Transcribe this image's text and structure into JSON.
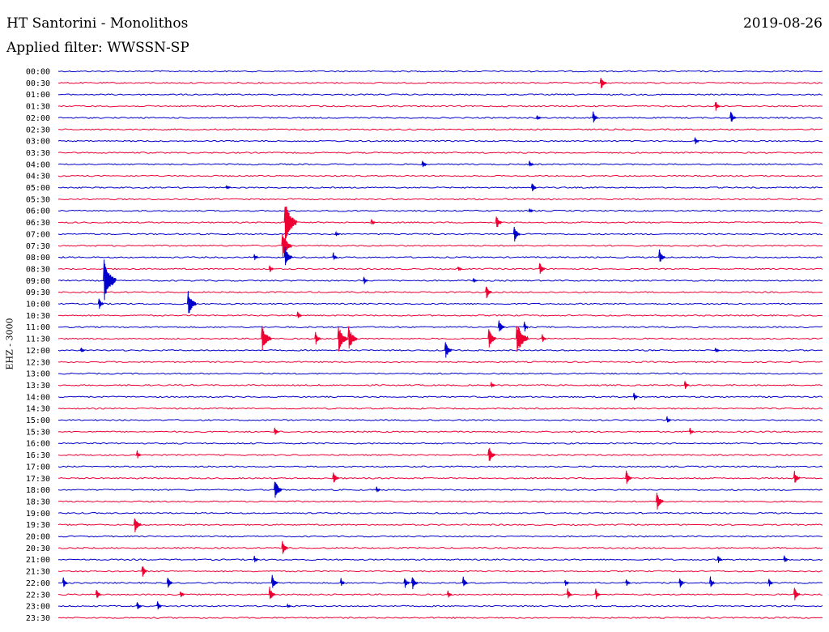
{
  "header": {
    "station": "HT Santorini - Monolithos",
    "filter": "Applied filter: WWSSN-SP",
    "date": "2019-08-26"
  },
  "colors": {
    "blue": "#0000cc",
    "red": "#ee0033"
  },
  "chart_data": {
    "type": "helicorder",
    "title": "HT Santorini - Monolithos",
    "ylabel": "EHZ - 3000",
    "row_labels": [
      "00:00",
      "00:30",
      "01:00",
      "01:30",
      "02:00",
      "02:30",
      "03:00",
      "03:30",
      "04:00",
      "04:30",
      "05:00",
      "05:30",
      "06:00",
      "06:30",
      "07:00",
      "07:30",
      "08:00",
      "08:30",
      "09:00",
      "09:30",
      "10:00",
      "10:30",
      "11:00",
      "11:30",
      "12:00",
      "12:30",
      "13:00",
      "13:30",
      "14:00",
      "14:30",
      "15:00",
      "15:30",
      "16:00",
      "16:30",
      "17:00",
      "17:30",
      "18:00",
      "18:30",
      "19:00",
      "19:30",
      "20:00",
      "20:30",
      "21:00",
      "21:30",
      "22:00",
      "22:30",
      "23:00",
      "23:30"
    ],
    "row_minutes": 30,
    "row_colors": [
      "blue",
      "red"
    ],
    "events": [
      {
        "row": 1,
        "minute": 21.3,
        "amp": 10
      },
      {
        "row": 3,
        "minute": 25.8,
        "amp": 8
      },
      {
        "row": 4,
        "minute": 18.8,
        "amp": 4
      },
      {
        "row": 4,
        "minute": 21.0,
        "amp": 8
      },
      {
        "row": 4,
        "minute": 26.4,
        "amp": 9
      },
      {
        "row": 6,
        "minute": 25.0,
        "amp": 6
      },
      {
        "row": 8,
        "minute": 14.3,
        "amp": 7
      },
      {
        "row": 8,
        "minute": 18.5,
        "amp": 5
      },
      {
        "row": 10,
        "minute": 6.6,
        "amp": 3
      },
      {
        "row": 10,
        "minute": 18.6,
        "amp": 8
      },
      {
        "row": 12,
        "minute": 18.5,
        "amp": 4
      },
      {
        "row": 13,
        "minute": 12.3,
        "amp": 4
      },
      {
        "row": 13,
        "minute": 17.2,
        "amp": 10
      },
      {
        "row": 13,
        "minute": 8.9,
        "amp": 28
      },
      {
        "row": 14,
        "minute": 17.9,
        "amp": 11
      },
      {
        "row": 14,
        "minute": 10.9,
        "amp": 3
      },
      {
        "row": 15,
        "minute": 8.8,
        "amp": 18
      },
      {
        "row": 16,
        "minute": 7.7,
        "amp": 5
      },
      {
        "row": 16,
        "minute": 10.8,
        "amp": 6
      },
      {
        "row": 16,
        "minute": 23.6,
        "amp": 10
      },
      {
        "row": 16,
        "minute": 8.9,
        "amp": 14
      },
      {
        "row": 17,
        "minute": 8.3,
        "amp": 6
      },
      {
        "row": 17,
        "minute": 15.7,
        "amp": 4
      },
      {
        "row": 17,
        "minute": 18.9,
        "amp": 10
      },
      {
        "row": 18,
        "minute": 1.8,
        "amp": 28
      },
      {
        "row": 18,
        "minute": 12.0,
        "amp": 6
      },
      {
        "row": 18,
        "minute": 16.3,
        "amp": 3
      },
      {
        "row": 19,
        "minute": 16.8,
        "amp": 10
      },
      {
        "row": 20,
        "minute": 1.6,
        "amp": 8
      },
      {
        "row": 20,
        "minute": 5.1,
        "amp": 16
      },
      {
        "row": 21,
        "minute": 9.4,
        "amp": 6
      },
      {
        "row": 22,
        "minute": 17.3,
        "amp": 10
      },
      {
        "row": 22,
        "minute": 18.3,
        "amp": 7
      },
      {
        "row": 23,
        "minute": 8.0,
        "amp": 18
      },
      {
        "row": 23,
        "minute": 10.1,
        "amp": 9
      },
      {
        "row": 23,
        "minute": 11.0,
        "amp": 18
      },
      {
        "row": 23,
        "minute": 11.4,
        "amp": 16
      },
      {
        "row": 23,
        "minute": 16.9,
        "amp": 14
      },
      {
        "row": 23,
        "minute": 18.0,
        "amp": 22
      },
      {
        "row": 23,
        "minute": 19.0,
        "amp": 6
      },
      {
        "row": 24,
        "minute": 15.2,
        "amp": 12
      },
      {
        "row": 24,
        "minute": 0.9,
        "amp": 4
      },
      {
        "row": 24,
        "minute": 25.8,
        "amp": 4
      },
      {
        "row": 27,
        "minute": 17.0,
        "amp": 4
      },
      {
        "row": 27,
        "minute": 24.6,
        "amp": 7
      },
      {
        "row": 28,
        "minute": 22.6,
        "amp": 6
      },
      {
        "row": 30,
        "minute": 23.9,
        "amp": 5
      },
      {
        "row": 31,
        "minute": 8.5,
        "amp": 6
      },
      {
        "row": 31,
        "minute": 24.8,
        "amp": 5
      },
      {
        "row": 33,
        "minute": 3.1,
        "amp": 6
      },
      {
        "row": 33,
        "minute": 16.9,
        "amp": 12
      },
      {
        "row": 35,
        "minute": 10.8,
        "amp": 10
      },
      {
        "row": 35,
        "minute": 22.3,
        "amp": 10
      },
      {
        "row": 35,
        "minute": 28.9,
        "amp": 10
      },
      {
        "row": 36,
        "minute": 8.5,
        "amp": 14
      },
      {
        "row": 36,
        "minute": 12.5,
        "amp": 4
      },
      {
        "row": 37,
        "minute": 23.5,
        "amp": 12
      },
      {
        "row": 39,
        "minute": 3.0,
        "amp": 12
      },
      {
        "row": 41,
        "minute": 8.8,
        "amp": 10
      },
      {
        "row": 42,
        "minute": 7.7,
        "amp": 5
      },
      {
        "row": 42,
        "minute": 25.9,
        "amp": 6
      },
      {
        "row": 42,
        "minute": 28.5,
        "amp": 6
      },
      {
        "row": 43,
        "minute": 3.3,
        "amp": 9
      },
      {
        "row": 44,
        "minute": 0.2,
        "amp": 8
      },
      {
        "row": 44,
        "minute": 4.3,
        "amp": 8
      },
      {
        "row": 44,
        "minute": 8.4,
        "amp": 10
      },
      {
        "row": 44,
        "minute": 11.1,
        "amp": 6
      },
      {
        "row": 44,
        "minute": 13.6,
        "amp": 8
      },
      {
        "row": 44,
        "minute": 13.9,
        "amp": 10
      },
      {
        "row": 44,
        "minute": 15.9,
        "amp": 8
      },
      {
        "row": 44,
        "minute": 19.9,
        "amp": 5
      },
      {
        "row": 44,
        "minute": 22.3,
        "amp": 5
      },
      {
        "row": 44,
        "minute": 24.4,
        "amp": 8
      },
      {
        "row": 44,
        "minute": 25.6,
        "amp": 8
      },
      {
        "row": 44,
        "minute": 27.9,
        "amp": 6
      },
      {
        "row": 45,
        "minute": 1.5,
        "amp": 8
      },
      {
        "row": 45,
        "minute": 4.8,
        "amp": 6
      },
      {
        "row": 45,
        "minute": 8.3,
        "amp": 10
      },
      {
        "row": 45,
        "minute": 15.3,
        "amp": 5
      },
      {
        "row": 45,
        "minute": 20.0,
        "amp": 8
      },
      {
        "row": 45,
        "minute": 21.1,
        "amp": 8
      },
      {
        "row": 45,
        "minute": 28.9,
        "amp": 10
      },
      {
        "row": 46,
        "minute": 3.1,
        "amp": 7
      },
      {
        "row": 46,
        "minute": 3.9,
        "amp": 7
      },
      {
        "row": 46,
        "minute": 9.0,
        "amp": 3
      }
    ],
    "xlabel": "",
    "legend": "none"
  }
}
